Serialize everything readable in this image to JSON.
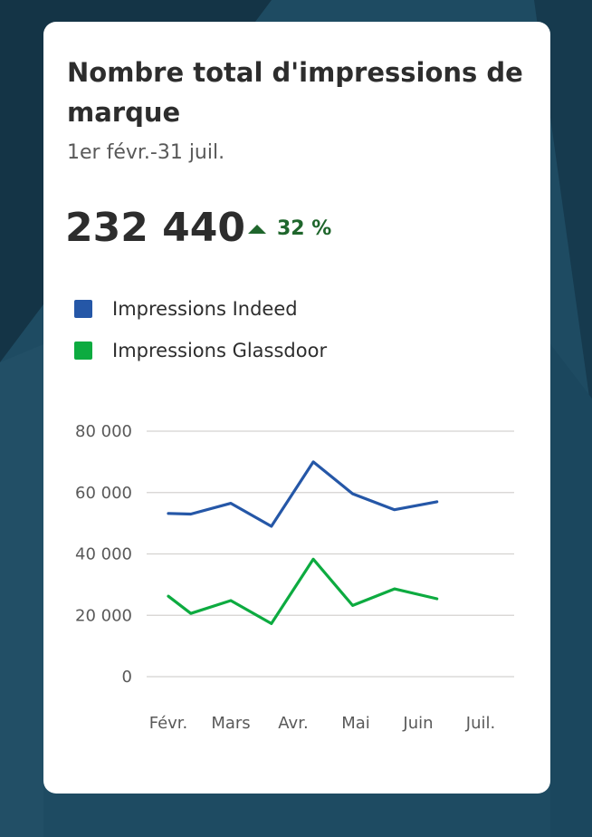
{
  "card": {
    "title": "Nombre total d'impressions de marque",
    "date_range": "1er févr.-31 juil.",
    "total": "232 440",
    "change": "32 %",
    "change_color": "#1f662c"
  },
  "legend": [
    {
      "label": "Impressions Indeed",
      "color": "#2557a7"
    },
    {
      "label": "Impressions Glassdoor",
      "color": "#0dab40"
    }
  ],
  "chart_data": {
    "type": "line",
    "x": [
      "Févr.",
      "Mars",
      "Avr.",
      "Mai",
      "Juin",
      "Juil."
    ],
    "x_positions": [
      0,
      1,
      2,
      3,
      4,
      5
    ],
    "yticks": [
      0,
      20000,
      40000,
      60000,
      80000
    ],
    "ytick_labels": [
      "0",
      "20 000",
      "40 000",
      "60 000",
      "80 000"
    ],
    "ylim": [
      0,
      80000
    ],
    "grid": true,
    "legend_placement": "top-left",
    "series": [
      {
        "name": "Impressions Indeed",
        "color": "#2557a7",
        "x": [
          0,
          0.36,
          1.0,
          1.65,
          2.32,
          2.95,
          3.62,
          4.3
        ],
        "values": [
          53200,
          53000,
          56500,
          49000,
          70000,
          59600,
          54400,
          57000
        ]
      },
      {
        "name": "Impressions Glassdoor",
        "color": "#0dab40",
        "x": [
          0,
          0.36,
          1.0,
          1.65,
          2.32,
          2.95,
          3.62,
          4.3
        ],
        "values": [
          26200,
          20600,
          24800,
          17300,
          38300,
          23200,
          28600,
          25400
        ]
      }
    ]
  }
}
